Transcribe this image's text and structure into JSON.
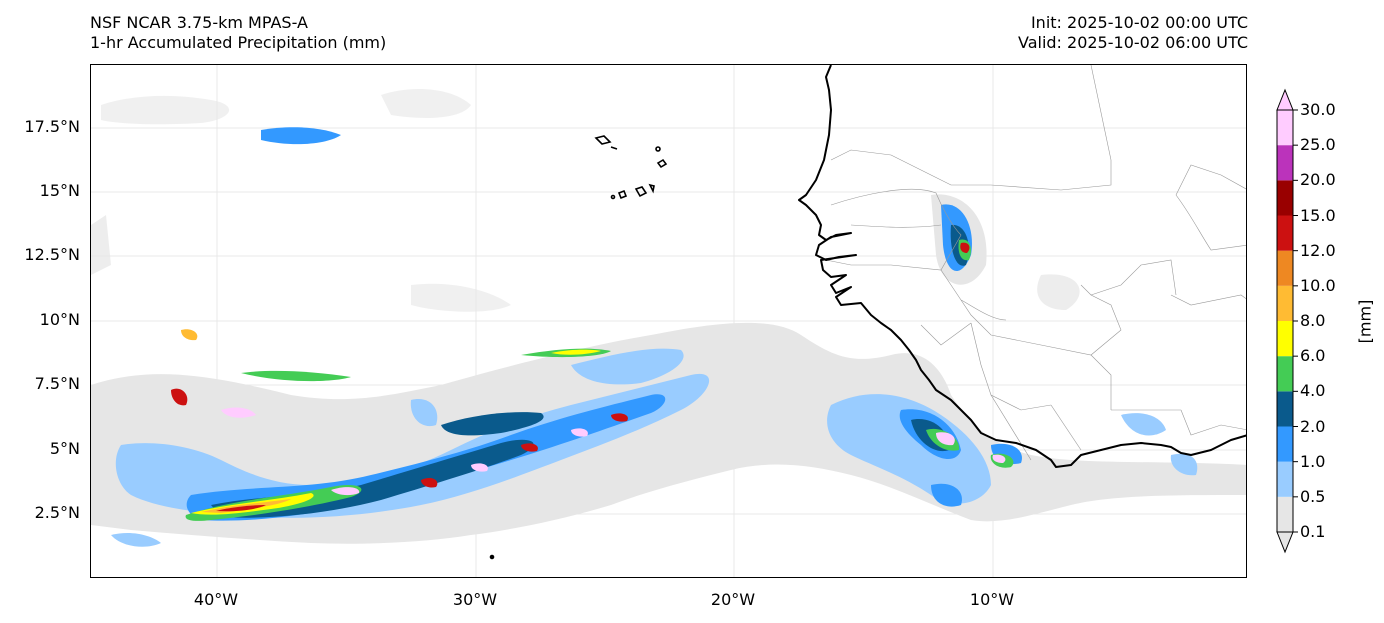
{
  "header": {
    "model_name": "NSF NCAR 3.75-km MPAS-A",
    "field_name": "1-hr Accumulated Precipitation (mm)",
    "init_time": "Init: 2025-10-02 00:00 UTC",
    "valid_time": "Valid: 2025-10-02 06:00 UTC"
  },
  "map": {
    "lat_labels": [
      "17.5°N",
      "15°N",
      "12.5°N",
      "10°N",
      "7.5°N",
      "5°N",
      "2.5°N"
    ],
    "lon_labels": [
      "40°W",
      "30°W",
      "20°W",
      "10°W"
    ]
  },
  "colorbar": {
    "unit": "[mm]",
    "levels": [
      "0.1",
      "0.5",
      "1.0",
      "2.0",
      "4.0",
      "6.0",
      "8.0",
      "10.0",
      "12.0",
      "15.0",
      "20.0",
      "25.0",
      "30.0"
    ],
    "colors": [
      "#e6e6e6",
      "#99ccff",
      "#3399ff",
      "#0a5a8c",
      "#44cc55",
      "#ffff00",
      "#ffbb33",
      "#ee8822",
      "#cc1111",
      "#990000",
      "#bb33bb",
      "#ffccff"
    ]
  }
}
